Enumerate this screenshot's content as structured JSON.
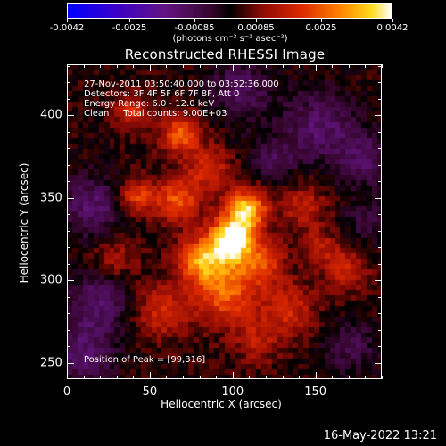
{
  "colorbar": {
    "tick_labels": [
      "-0.0042",
      "-0.0025",
      "-0.00085",
      "0.00085",
      "0.0025",
      "0.0042"
    ],
    "units": "(photons cm⁻² s⁻¹ asec⁻²)"
  },
  "title": "Reconstructed RHESSI Image",
  "overlay": {
    "time": "27-Nov-2011 03:50:40.000 to 03:52:36.000",
    "detectors": "Detectors: 3F 4F 5F 6F 7F 8F, Att 0",
    "energy": "Energy Range: 6.0 - 12.0 keV",
    "clean": "Clean     Total counts: 9.00E+03",
    "peak": "Position of Peak = [99,316]"
  },
  "axes": {
    "xlabel": "Heliocentric X (arcsec)",
    "ylabel": "Heliocentric Y (arcsec)",
    "xticks": [
      "0",
      "50",
      "100",
      "150"
    ],
    "yticks": [
      "250",
      "300",
      "350",
      "400"
    ]
  },
  "footer": "16-May-2022 13:21",
  "chart_data": {
    "type": "heatmap",
    "title": "Reconstructed RHESSI Image",
    "xlabel": "Heliocentric X (arcsec)",
    "ylabel": "Heliocentric Y (arcsec)",
    "xlim": [
      0,
      190
    ],
    "ylim": [
      240,
      431
    ],
    "colorbar_range": [
      -0.0042,
      0.0042
    ],
    "colormap": "blue-purple-red-yellow-white",
    "peak": [
      99,
      316
    ]
  }
}
